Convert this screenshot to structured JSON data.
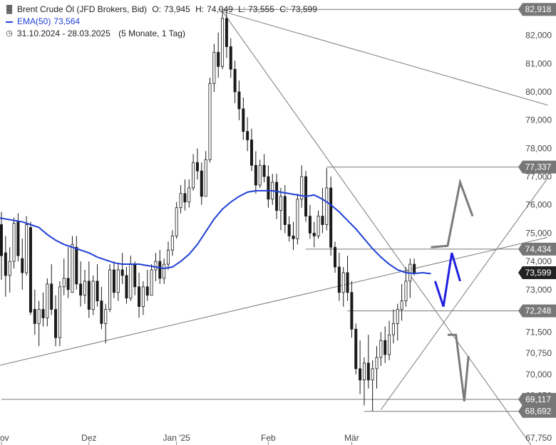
{
  "legend": {
    "title": "Brent Crude Öl (JFD Brokers, Bid)",
    "ohlc": {
      "O": "73,945",
      "H": "74,049",
      "L": "73,555",
      "C": "73,599"
    },
    "ema_label": "EMA(50)",
    "ema_value": "73,564",
    "period": "31.10.2024 - 28.03.2025",
    "range": "(5 Monate, 1 Tag)",
    "title_icon": "bar-chart-icon",
    "period_icon": "clock-icon"
  },
  "colors": {
    "up": "#ffffff",
    "down": "#1a1a1a",
    "ema": "#1f3fd6",
    "trendline": "#7a7a7a",
    "forecast_up": "#1f1fe0",
    "forecast_scenario": "#7a7a7a",
    "label_bg": "#777777",
    "current_bg": "#222222"
  },
  "chart_data": {
    "type": "candlestick",
    "title": "Brent Crude Öl (JFD Brokers, Bid)",
    "ylim": [
      67.5,
      83.05
    ],
    "x_ticks": [
      {
        "label": "Nov",
        "index": 0
      },
      {
        "label": "Dez",
        "index": 21
      },
      {
        "label": "Jan '25",
        "index": 42
      },
      {
        "label": "Feb",
        "index": 64
      },
      {
        "label": "Mär",
        "index": 84
      }
    ],
    "y_ticks": [
      {
        "v": 82.0,
        "label": "82,000"
      },
      {
        "v": 81.0,
        "label": "81,000"
      },
      {
        "v": 80.0,
        "label": "80,000"
      },
      {
        "v": 79.0,
        "label": "79,000"
      },
      {
        "v": 78.0,
        "label": "78,000"
      },
      {
        "v": 77.0,
        "label": "77,000"
      },
      {
        "v": 76.0,
        "label": "76,000"
      },
      {
        "v": 75.0,
        "label": "75,000"
      },
      {
        "v": 74.0,
        "label": "74,000"
      },
      {
        "v": 73.0,
        "label": "73,000"
      },
      {
        "v": 72.25,
        "label": "72,250"
      },
      {
        "v": 71.5,
        "label": "71,500"
      },
      {
        "v": 70.75,
        "label": "70,750"
      },
      {
        "v": 70.0,
        "label": "70,000"
      },
      {
        "v": 69.25,
        "label": "69,250"
      },
      {
        "v": 67.75,
        "label": "67,750"
      }
    ],
    "price_levels": [
      {
        "v": 82.918,
        "label": "82,918",
        "line_from": 52
      },
      {
        "v": 77.337,
        "label": "77,337",
        "line_from": 78
      },
      {
        "v": 74.434,
        "label": "74,434",
        "line_from": 73
      },
      {
        "v": 72.248,
        "label": "72,248",
        "line_from": 83
      },
      {
        "v": 69.117,
        "label": "69,117",
        "line_from": 0
      },
      {
        "v": 68.692,
        "label": "68,692",
        "line_from": 87
      }
    ],
    "current_price": {
      "v": 73.599,
      "label": "73,599"
    },
    "trendlines": [
      {
        "x1": 53,
        "y1": 82.85,
        "x2": 131,
        "y2": 79.53
      },
      {
        "x1": 53,
        "y1": 82.85,
        "x2": 127,
        "y2": 67.5
      },
      {
        "x1": -1,
        "y1": 70.3,
        "x2": 131,
        "y2": 74.85
      },
      {
        "x1": 91,
        "y1": 68.75,
        "x2": 131,
        "y2": 76.95
      }
    ],
    "forecast_paths": [
      {
        "name": "bull",
        "color": "forecast_scenario",
        "points": [
          [
            103,
            74.5
          ],
          [
            107,
            74.55
          ],
          [
            110,
            76.8
          ],
          [
            113,
            75.6
          ]
        ]
      },
      {
        "name": "swing",
        "color": "forecast_up",
        "points": [
          [
            104,
            73.3
          ],
          [
            106,
            72.4
          ],
          [
            108,
            74.3
          ],
          [
            110,
            73.3
          ]
        ]
      },
      {
        "name": "bear",
        "color": "forecast_scenario",
        "points": [
          [
            107,
            71.4
          ],
          [
            109,
            71.4
          ],
          [
            111,
            69.05
          ],
          [
            112,
            70.65
          ]
        ]
      }
    ],
    "ema": [
      [
        -1,
        75.55
      ],
      [
        1,
        75.5
      ],
      [
        3,
        75.45
      ],
      [
        5,
        75.4
      ],
      [
        7,
        75.3
      ],
      [
        9,
        75.2
      ],
      [
        11,
        74.95
      ],
      [
        13,
        74.75
      ],
      [
        15,
        74.6
      ],
      [
        17,
        74.5
      ],
      [
        19,
        74.4
      ],
      [
        21,
        74.3
      ],
      [
        23,
        74.15
      ],
      [
        25,
        74.05
      ],
      [
        27,
        73.95
      ],
      [
        29,
        73.9
      ],
      [
        31,
        73.9
      ],
      [
        33,
        73.9
      ],
      [
        35,
        73.85
      ],
      [
        37,
        73.8
      ],
      [
        39,
        73.75
      ],
      [
        41,
        73.8
      ],
      [
        43,
        74.0
      ],
      [
        45,
        74.25
      ],
      [
        47,
        74.6
      ],
      [
        49,
        75.05
      ],
      [
        51,
        75.5
      ],
      [
        53,
        75.85
      ],
      [
        55,
        76.1
      ],
      [
        57,
        76.3
      ],
      [
        59,
        76.45
      ],
      [
        61,
        76.5
      ],
      [
        63,
        76.5
      ],
      [
        65,
        76.5
      ],
      [
        67,
        76.45
      ],
      [
        69,
        76.4
      ],
      [
        71,
        76.35
      ],
      [
        73,
        76.3
      ],
      [
        75,
        76.35
      ],
      [
        77,
        76.2
      ],
      [
        79,
        76.0
      ],
      [
        81,
        75.75
      ],
      [
        83,
        75.45
      ],
      [
        85,
        75.15
      ],
      [
        87,
        74.8
      ],
      [
        89,
        74.45
      ],
      [
        91,
        74.15
      ],
      [
        93,
        73.9
      ],
      [
        95,
        73.7
      ],
      [
        97,
        73.6
      ],
      [
        99,
        73.57
      ],
      [
        101,
        73.6
      ],
      [
        103,
        73.564
      ]
    ],
    "candles": [
      [
        75.3,
        75.75,
        73.35,
        74.2
      ],
      [
        74.3,
        74.9,
        72.75,
        73.5
      ],
      [
        73.5,
        74.5,
        72.9,
        74.0
      ],
      [
        74.0,
        75.55,
        73.75,
        75.35
      ],
      [
        75.4,
        75.7,
        74.0,
        74.2
      ],
      [
        74.1,
        74.8,
        73.0,
        73.6
      ],
      [
        73.6,
        75.6,
        73.5,
        75.3
      ],
      [
        75.2,
        75.4,
        72.1,
        72.2
      ],
      [
        72.3,
        73.0,
        71.4,
        71.8
      ],
      [
        71.8,
        72.6,
        71.0,
        72.3
      ],
      [
        72.3,
        72.9,
        71.7,
        72.0
      ],
      [
        72.0,
        73.4,
        71.7,
        73.2
      ],
      [
        73.2,
        73.9,
        72.1,
        72.3
      ],
      [
        72.3,
        72.8,
        71.0,
        71.3
      ],
      [
        71.3,
        73.3,
        71.0,
        73.1
      ],
      [
        73.1,
        74.1,
        72.8,
        73.4
      ],
      [
        73.4,
        74.5,
        72.7,
        73.0
      ],
      [
        72.9,
        74.9,
        72.9,
        74.6
      ],
      [
        74.5,
        74.9,
        73.0,
        73.2
      ],
      [
        73.2,
        74.0,
        72.4,
        72.8
      ],
      [
        72.8,
        73.7,
        72.5,
        73.3
      ],
      [
        73.3,
        74.0,
        72.0,
        72.3
      ],
      [
        72.3,
        73.5,
        72.1,
        73.3
      ],
      [
        73.3,
        73.9,
        72.4,
        72.6
      ],
      [
        72.6,
        73.1,
        71.6,
        71.8
      ],
      [
        71.8,
        72.5,
        71.1,
        72.3
      ],
      [
        72.3,
        73.9,
        72.2,
        73.7
      ],
      [
        73.7,
        74.0,
        72.7,
        72.9
      ],
      [
        72.9,
        73.9,
        72.6,
        73.7
      ],
      [
        73.7,
        74.3,
        73.2,
        73.5
      ],
      [
        73.5,
        73.8,
        72.5,
        72.7
      ],
      [
        72.7,
        74.2,
        72.6,
        73.9
      ],
      [
        73.9,
        74.0,
        72.8,
        73.1
      ],
      [
        73.1,
        73.6,
        72.0,
        72.4
      ],
      [
        72.4,
        73.3,
        72.1,
        73.1
      ],
      [
        73.1,
        73.7,
        72.6,
        72.8
      ],
      [
        72.8,
        73.9,
        72.8,
        73.7
      ],
      [
        73.7,
        74.3,
        73.3,
        74.0
      ],
      [
        74.0,
        74.4,
        73.2,
        73.4
      ],
      [
        73.4,
        74.1,
        73.2,
        73.9
      ],
      [
        73.9,
        74.7,
        73.7,
        74.4
      ],
      [
        74.4,
        75.1,
        74.2,
        74.9
      ],
      [
        74.9,
        76.1,
        74.8,
        75.9
      ],
      [
        75.9,
        76.7,
        75.7,
        76.4
      ],
      [
        76.4,
        76.9,
        75.8,
        76.1
      ],
      [
        76.1,
        76.9,
        75.9,
        76.6
      ],
      [
        76.6,
        77.8,
        76.5,
        77.5
      ],
      [
        77.5,
        78.0,
        76.9,
        77.2
      ],
      [
        77.2,
        77.5,
        76.0,
        76.3
      ],
      [
        76.3,
        77.9,
        76.3,
        77.6
      ],
      [
        77.6,
        80.5,
        77.5,
        80.3
      ],
      [
        80.3,
        81.7,
        80.0,
        81.4
      ],
      [
        81.4,
        82.1,
        80.5,
        80.9
      ],
      [
        80.9,
        82.9,
        80.8,
        82.6
      ],
      [
        82.6,
        82.9,
        81.2,
        81.6
      ],
      [
        81.6,
        81.9,
        80.5,
        80.8
      ],
      [
        80.8,
        81.1,
        79.6,
        80.0
      ],
      [
        80.0,
        80.4,
        79.0,
        79.4
      ],
      [
        79.4,
        79.8,
        78.3,
        78.6
      ],
      [
        78.6,
        79.1,
        77.9,
        78.3
      ],
      [
        78.3,
        78.7,
        77.2,
        77.4
      ],
      [
        77.4,
        77.9,
        76.4,
        76.7
      ],
      [
        76.7,
        77.6,
        76.6,
        77.4
      ],
      [
        77.4,
        77.8,
        76.8,
        77.0
      ],
      [
        77.0,
        77.4,
        75.9,
        76.2
      ],
      [
        76.2,
        77.1,
        76.0,
        76.8
      ],
      [
        76.8,
        77.1,
        75.5,
        75.8
      ],
      [
        75.8,
        76.6,
        75.1,
        76.3
      ],
      [
        76.3,
        76.7,
        75.0,
        75.3
      ],
      [
        75.3,
        75.6,
        74.7,
        74.9
      ],
      [
        74.9,
        75.4,
        74.4,
        74.8
      ],
      [
        74.8,
        76.4,
        74.6,
        76.2
      ],
      [
        76.2,
        77.4,
        75.9,
        77.0
      ],
      [
        77.0,
        77.2,
        75.4,
        75.6
      ],
      [
        75.6,
        76.0,
        74.8,
        75.0
      ],
      [
        75.0,
        75.4,
        74.5,
        74.9
      ],
      [
        74.9,
        75.8,
        74.8,
        75.6
      ],
      [
        75.6,
        76.6,
        75.0,
        75.3
      ],
      [
        75.3,
        77.3,
        75.1,
        76.6
      ],
      [
        76.6,
        77.0,
        74.2,
        74.5
      ],
      [
        74.5,
        74.7,
        73.6,
        73.8
      ],
      [
        73.8,
        74.3,
        72.6,
        72.9
      ],
      [
        72.9,
        73.8,
        72.4,
        73.6
      ],
      [
        73.6,
        74.2,
        72.6,
        72.9
      ],
      [
        72.9,
        73.3,
        71.3,
        71.6
      ],
      [
        71.6,
        71.8,
        70.0,
        70.2
      ],
      [
        70.2,
        71.2,
        69.3,
        69.8
      ],
      [
        69.8,
        70.6,
        68.9,
        70.4
      ],
      [
        70.4,
        71.4,
        69.5,
        69.8
      ],
      [
        69.8,
        70.5,
        68.7,
        70.2
      ],
      [
        70.2,
        71.0,
        69.5,
        70.6
      ],
      [
        70.6,
        71.5,
        70.3,
        71.2
      ],
      [
        71.2,
        71.7,
        70.4,
        70.7
      ],
      [
        70.7,
        71.9,
        70.5,
        71.4
      ],
      [
        71.4,
        72.3,
        71.1,
        71.8
      ],
      [
        71.8,
        72.5,
        71.2,
        72.3
      ],
      [
        72.3,
        73.2,
        71.9,
        72.6
      ],
      [
        72.6,
        73.8,
        72.4,
        73.3
      ],
      [
        73.3,
        74.1,
        72.7,
        73.9
      ],
      [
        73.9,
        74.1,
        73.5,
        73.6
      ]
    ]
  }
}
